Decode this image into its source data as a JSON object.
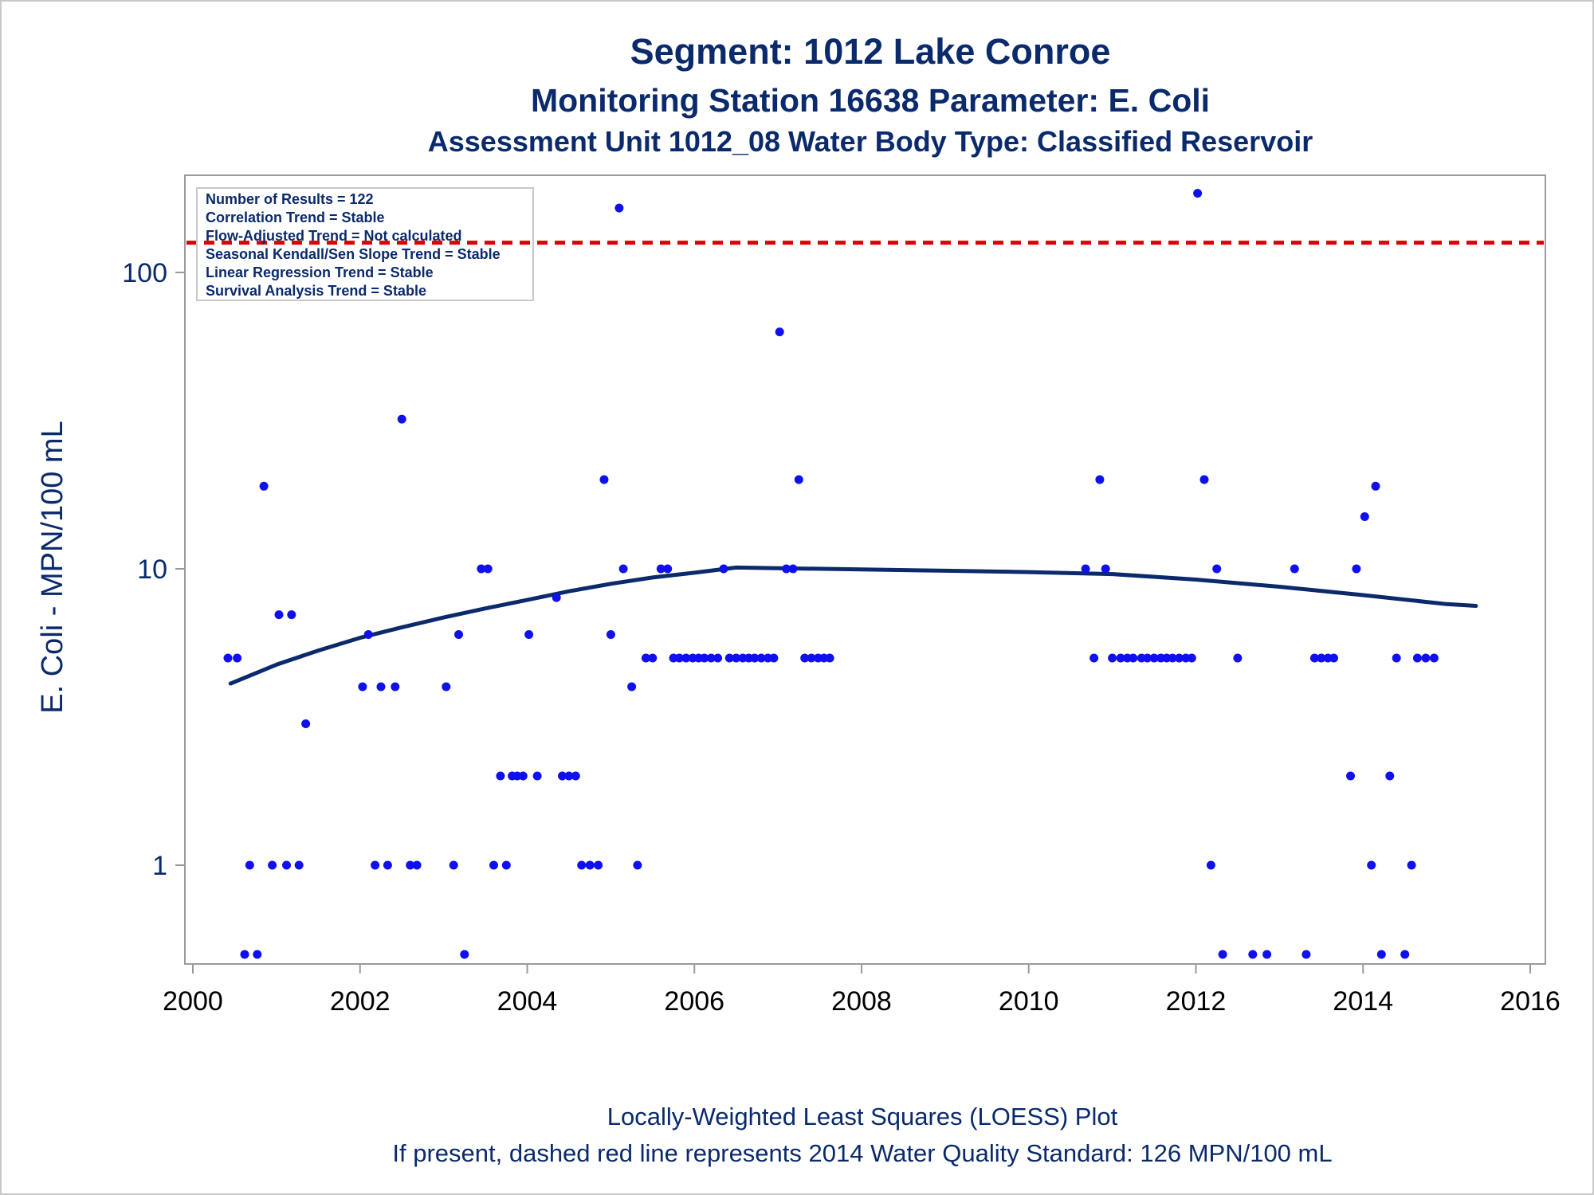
{
  "colors": {
    "text": "#0a2a6b",
    "points": "#1010ee",
    "loess": "#0b2a6b",
    "standard": "#dd0000",
    "frame": "#9a9a9a"
  },
  "titles": {
    "line1": "Segment: 1012  Lake Conroe",
    "line2": "Monitoring Station 16638 Parameter: E. Coli",
    "line3": "Assessment Unit 1012_08   Water Body Type: Classified Reservoir"
  },
  "stats": [
    "Number of Results = 122",
    "Correlation Trend = Stable",
    "Flow-Adjusted Trend = Not calculated",
    "Seasonal Kendall/Sen Slope Trend = Stable",
    "Linear Regression Trend = Stable",
    "Survival Analysis Trend = Stable"
  ],
  "footnotes": {
    "line1": "Locally-Weighted Least Squares (LOESS) Plot",
    "line2": "If present, dashed red line represents 2014 Water Quality Standard: 126 MPN/100 mL"
  },
  "chart_data": {
    "type": "scatter",
    "title": "Segment: 1012  Lake Conroe",
    "xlabel": "",
    "ylabel": "E. Coli - MPN/100 mL",
    "x_ticks": [
      2000,
      2002,
      2004,
      2006,
      2008,
      2010,
      2012,
      2014,
      2016
    ],
    "xlim": [
      2000,
      2016
    ],
    "y_ticks": [
      1,
      10,
      100
    ],
    "y_scale": "log",
    "ylim": [
      0.45,
      200
    ],
    "grid": false,
    "legend": "none",
    "standard_line": {
      "value": 126,
      "style": "dashed"
    },
    "points": [
      [
        2000.42,
        5
      ],
      [
        2000.53,
        5
      ],
      [
        2000.62,
        0.5
      ],
      [
        2000.68,
        1
      ],
      [
        2000.77,
        0.5
      ],
      [
        2000.85,
        19
      ],
      [
        2000.95,
        1
      ],
      [
        2001.03,
        7
      ],
      [
        2001.12,
        1
      ],
      [
        2001.18,
        7
      ],
      [
        2001.27,
        1
      ],
      [
        2001.35,
        3
      ],
      [
        2002.03,
        4
      ],
      [
        2002.1,
        6
      ],
      [
        2002.18,
        1
      ],
      [
        2002.25,
        4
      ],
      [
        2002.33,
        1
      ],
      [
        2002.42,
        4
      ],
      [
        2002.5,
        32
      ],
      [
        2002.6,
        1
      ],
      [
        2002.68,
        1
      ],
      [
        2003.03,
        4
      ],
      [
        2003.12,
        1
      ],
      [
        2003.18,
        6
      ],
      [
        2003.25,
        0.5
      ],
      [
        2003.45,
        10
      ],
      [
        2003.53,
        10
      ],
      [
        2003.6,
        1
      ],
      [
        2003.68,
        2
      ],
      [
        2003.75,
        1
      ],
      [
        2003.82,
        2
      ],
      [
        2003.88,
        2
      ],
      [
        2003.95,
        2
      ],
      [
        2004.02,
        6
      ],
      [
        2004.12,
        2
      ],
      [
        2004.35,
        8
      ],
      [
        2004.42,
        2
      ],
      [
        2004.5,
        2
      ],
      [
        2004.58,
        2
      ],
      [
        2004.65,
        1
      ],
      [
        2004.75,
        1
      ],
      [
        2004.85,
        1
      ],
      [
        2004.92,
        20
      ],
      [
        2005.0,
        6
      ],
      [
        2005.1,
        165
      ],
      [
        2005.15,
        10
      ],
      [
        2005.25,
        4
      ],
      [
        2005.32,
        1
      ],
      [
        2005.42,
        5
      ],
      [
        2005.5,
        5
      ],
      [
        2005.6,
        10
      ],
      [
        2005.68,
        10
      ],
      [
        2005.75,
        5
      ],
      [
        2005.82,
        5
      ],
      [
        2005.9,
        5
      ],
      [
        2005.98,
        5
      ],
      [
        2006.05,
        5
      ],
      [
        2006.12,
        5
      ],
      [
        2006.2,
        5
      ],
      [
        2006.28,
        5
      ],
      [
        2006.35,
        10
      ],
      [
        2006.42,
        5
      ],
      [
        2006.5,
        5
      ],
      [
        2006.58,
        5
      ],
      [
        2006.65,
        5
      ],
      [
        2006.72,
        5
      ],
      [
        2006.8,
        5
      ],
      [
        2006.88,
        5
      ],
      [
        2006.95,
        5
      ],
      [
        2007.02,
        63
      ],
      [
        2007.1,
        10
      ],
      [
        2007.18,
        10
      ],
      [
        2007.25,
        20
      ],
      [
        2007.32,
        5
      ],
      [
        2007.4,
        5
      ],
      [
        2007.48,
        5
      ],
      [
        2007.55,
        5
      ],
      [
        2007.62,
        5
      ],
      [
        2010.68,
        10
      ],
      [
        2010.78,
        5
      ],
      [
        2010.85,
        20
      ],
      [
        2010.92,
        10
      ],
      [
        2011.0,
        5
      ],
      [
        2011.1,
        5
      ],
      [
        2011.18,
        5
      ],
      [
        2011.25,
        5
      ],
      [
        2011.35,
        5
      ],
      [
        2011.42,
        5
      ],
      [
        2011.5,
        5
      ],
      [
        2011.58,
        5
      ],
      [
        2011.65,
        5
      ],
      [
        2011.72,
        5
      ],
      [
        2011.8,
        5
      ],
      [
        2011.88,
        5
      ],
      [
        2011.95,
        5
      ],
      [
        2012.02,
        185
      ],
      [
        2012.1,
        20
      ],
      [
        2012.18,
        1
      ],
      [
        2012.25,
        10
      ],
      [
        2012.32,
        0.5
      ],
      [
        2012.5,
        5
      ],
      [
        2012.68,
        0.5
      ],
      [
        2012.85,
        0.5
      ],
      [
        2013.18,
        10
      ],
      [
        2013.32,
        0.5
      ],
      [
        2013.42,
        5
      ],
      [
        2013.5,
        5
      ],
      [
        2013.58,
        5
      ],
      [
        2013.65,
        5
      ],
      [
        2013.85,
        2
      ],
      [
        2013.92,
        10
      ],
      [
        2014.02,
        15
      ],
      [
        2014.1,
        1
      ],
      [
        2014.15,
        19
      ],
      [
        2014.22,
        0.5
      ],
      [
        2014.32,
        2
      ],
      [
        2014.4,
        5
      ],
      [
        2014.5,
        0.5
      ],
      [
        2014.58,
        1
      ],
      [
        2014.65,
        5
      ],
      [
        2014.75,
        5
      ],
      [
        2014.85,
        5
      ]
    ],
    "loess": [
      [
        2000.45,
        4.1
      ],
      [
        2001.0,
        4.75
      ],
      [
        2001.5,
        5.3
      ],
      [
        2002.0,
        5.85
      ],
      [
        2002.5,
        6.35
      ],
      [
        2003.0,
        6.85
      ],
      [
        2003.5,
        7.35
      ],
      [
        2004.0,
        7.85
      ],
      [
        2004.5,
        8.4
      ],
      [
        2005.0,
        8.9
      ],
      [
        2005.5,
        9.35
      ],
      [
        2006.0,
        9.7
      ],
      [
        2006.5,
        10.1
      ],
      [
        2007.0,
        10.05
      ],
      [
        2008.0,
        9.95
      ],
      [
        2009.0,
        9.85
      ],
      [
        2010.0,
        9.75
      ],
      [
        2011.0,
        9.6
      ],
      [
        2012.0,
        9.2
      ],
      [
        2013.0,
        8.7
      ],
      [
        2014.0,
        8.15
      ],
      [
        2015.0,
        7.6
      ],
      [
        2015.35,
        7.5
      ]
    ]
  }
}
